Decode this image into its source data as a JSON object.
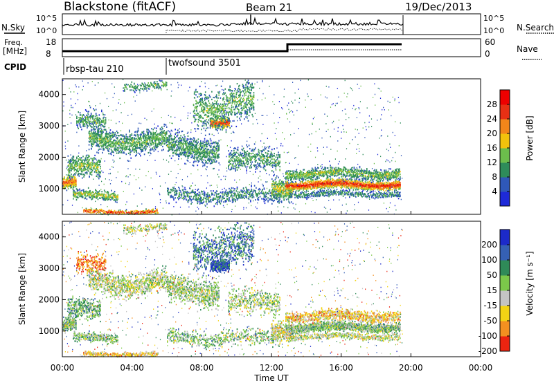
{
  "header": {
    "station": "Blackstone (fitACF)",
    "beam": "Beam 21",
    "date": "19/Dec/2013"
  },
  "noise_panel": {
    "left_label": "N.Sky",
    "left_ticks": [
      "10^5",
      "10^0"
    ],
    "right_ticks": [
      "10^5",
      "10^0"
    ],
    "right_label": "N.Search"
  },
  "freq_panel": {
    "left_label_line1": "Freq.",
    "left_label_line2": "[MHz]",
    "left_ticks": [
      "18",
      "8"
    ],
    "right_ticks": [
      "60",
      "0"
    ],
    "right_label": "Nave"
  },
  "cpid": {
    "label": "CPID",
    "programs": [
      {
        "name": "rbsp-tau 210",
        "start_hour": 0.0
      },
      {
        "name": "twofsound 3501",
        "start_hour": 6.0
      }
    ]
  },
  "x_axis": {
    "title": "Time UT",
    "ticks": [
      "00:00",
      "04:00",
      "08:00",
      "12:00",
      "16:00",
      "20:00",
      "00:00"
    ],
    "range_hours": [
      0,
      24
    ]
  },
  "chart_data": [
    {
      "type": "heatmap",
      "name": "power",
      "ylabel": "Slant Range [km]",
      "yticks": [
        1000,
        2000,
        3000,
        4000
      ],
      "ylim": [
        180,
        4500
      ],
      "xlim_hours": [
        0,
        24
      ],
      "data_end_hour": 19.5,
      "colorbar": {
        "title": "Power [dB]",
        "ticks": [
          "4",
          "8",
          "12",
          "16",
          "20",
          "24",
          "28"
        ],
        "range": [
          0,
          32
        ],
        "colors": [
          "#1e2ad8",
          "#2f58b8",
          "#2e8c5a",
          "#6cbd4c",
          "#f2c20c",
          "#f2861a",
          "#e83014",
          "#ee0000"
        ]
      }
    },
    {
      "type": "heatmap",
      "name": "velocity",
      "ylabel": "Slant Range [km]",
      "yticks": [
        1000,
        2000,
        3000,
        4000
      ],
      "ylim": [
        180,
        4500
      ],
      "xlim_hours": [
        0,
        24
      ],
      "data_end_hour": 19.5,
      "colorbar": {
        "title": "Velocity [m s⁻¹]",
        "ticks": [
          "200",
          "100",
          "50",
          "15",
          "-15",
          "-50",
          "-100",
          "-200"
        ],
        "colors": [
          "#1c2ac9",
          "#3560b4",
          "#2f8a58",
          "#7cc84a",
          "#c4c4c4",
          "#f3d414",
          "#f39020",
          "#ec2410"
        ]
      }
    }
  ]
}
